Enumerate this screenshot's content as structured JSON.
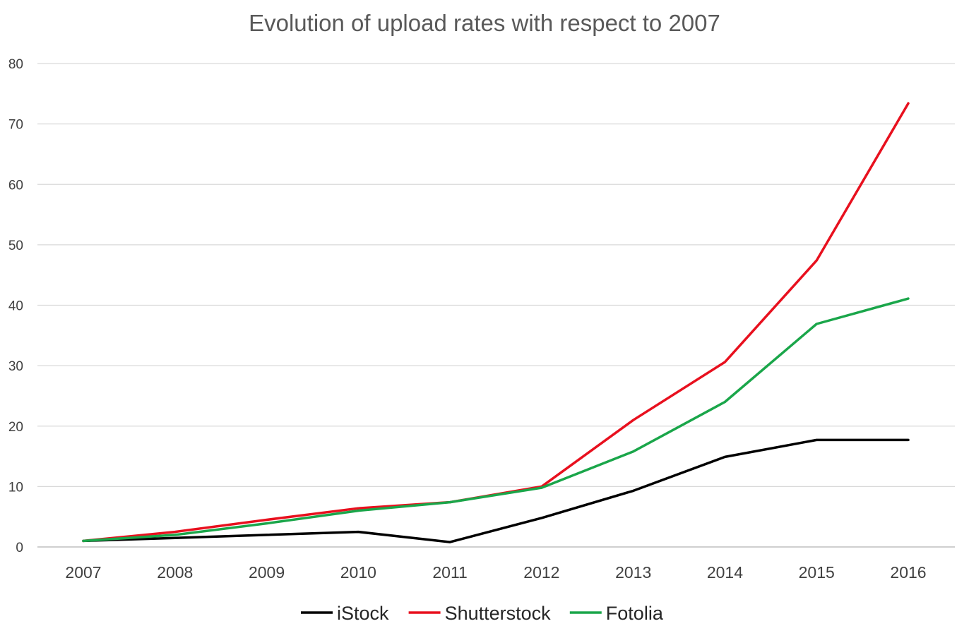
{
  "chart_data": {
    "type": "line",
    "title": "Evolution of upload rates with respect to 2007",
    "x": [
      "2007",
      "2008",
      "2009",
      "2010",
      "2011",
      "2012",
      "2013",
      "2014",
      "2015",
      "2016"
    ],
    "ylim": [
      0,
      80
    ],
    "yticks": [
      0,
      10,
      20,
      30,
      40,
      50,
      60,
      70,
      80
    ],
    "grid": true,
    "legend_position": "bottom",
    "series": [
      {
        "name": "iStock",
        "color": "#000000",
        "values": [
          1,
          1.5,
          2,
          2.5,
          0.8,
          4.8,
          9.3,
          14.9,
          17.7,
          17.7
        ]
      },
      {
        "name": "Shutterstock",
        "color": "#e8101e",
        "values": [
          1,
          2.5,
          4.5,
          6.4,
          7.4,
          10,
          21,
          30.6,
          47.4,
          73.4
        ]
      },
      {
        "name": "Fotolia",
        "color": "#1aa64a",
        "values": [
          1,
          2,
          3.9,
          6,
          7.4,
          9.8,
          15.8,
          24,
          36.9,
          41.1
        ]
      }
    ]
  }
}
